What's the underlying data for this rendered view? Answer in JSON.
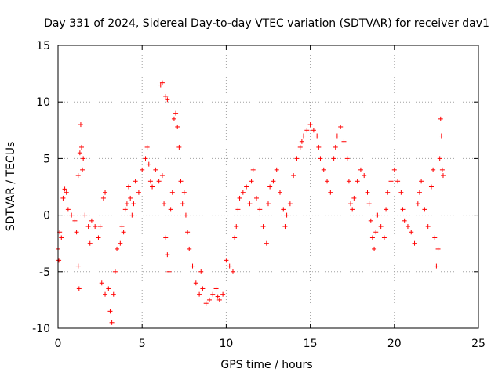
{
  "chart_data": {
    "type": "scatter",
    "title": "Day 331 of 2024, Sidereal Day-to-day VTEC variation (SDTVAR) for receiver dav1",
    "xlabel": "GPS time / hours",
    "ylabel": "SDTVAR / TECUs",
    "xlim": [
      0,
      25
    ],
    "ylim": [
      -10,
      15
    ],
    "x_ticks": [
      0,
      5,
      10,
      15,
      20,
      25
    ],
    "y_ticks": [
      -10,
      -5,
      0,
      5,
      10,
      15
    ],
    "grid": true,
    "marker": "+",
    "series": [
      {
        "name": "SDTVAR",
        "color": "#ff0000",
        "points": [
          [
            0.0,
            -3.0
          ],
          [
            0.05,
            -4.0
          ],
          [
            0.1,
            -1.5
          ],
          [
            0.2,
            -2.0
          ],
          [
            0.3,
            1.5
          ],
          [
            0.4,
            2.3
          ],
          [
            0.5,
            2.0
          ],
          [
            0.6,
            0.5
          ],
          [
            0.8,
            0.0
          ],
          [
            1.0,
            -0.5
          ],
          [
            1.1,
            -1.5
          ],
          [
            1.2,
            3.5
          ],
          [
            1.3,
            5.5
          ],
          [
            1.35,
            8.0
          ],
          [
            1.4,
            6.0
          ],
          [
            1.45,
            4.0
          ],
          [
            1.5,
            5.0
          ],
          [
            1.2,
            -4.5
          ],
          [
            1.25,
            -6.5
          ],
          [
            1.6,
            0.0
          ],
          [
            1.8,
            -1.0
          ],
          [
            1.9,
            -2.5
          ],
          [
            2.0,
            -0.5
          ],
          [
            2.2,
            -1.0
          ],
          [
            2.4,
            -2.0
          ],
          [
            2.5,
            -1.0
          ],
          [
            2.7,
            1.5
          ],
          [
            2.8,
            2.0
          ],
          [
            2.6,
            -6.0
          ],
          [
            2.8,
            -7.0
          ],
          [
            3.0,
            -6.5
          ],
          [
            3.1,
            -8.5
          ],
          [
            3.2,
            -9.5
          ],
          [
            3.3,
            -7.0
          ],
          [
            3.4,
            -5.0
          ],
          [
            3.5,
            -3.0
          ],
          [
            3.7,
            -2.5
          ],
          [
            3.8,
            -1.0
          ],
          [
            3.9,
            -1.5
          ],
          [
            4.0,
            0.5
          ],
          [
            4.1,
            1.0
          ],
          [
            4.2,
            2.5
          ],
          [
            4.3,
            1.5
          ],
          [
            4.4,
            0.0
          ],
          [
            4.5,
            1.0
          ],
          [
            4.6,
            3.0
          ],
          [
            4.8,
            2.0
          ],
          [
            5.0,
            4.0
          ],
          [
            5.2,
            5.0
          ],
          [
            5.3,
            6.0
          ],
          [
            5.4,
            4.5
          ],
          [
            5.5,
            3.0
          ],
          [
            5.6,
            2.5
          ],
          [
            5.8,
            4.0
          ],
          [
            6.0,
            3.0
          ],
          [
            6.1,
            11.5
          ],
          [
            6.2,
            11.7
          ],
          [
            6.4,
            10.5
          ],
          [
            6.5,
            10.2
          ],
          [
            6.2,
            3.5
          ],
          [
            6.3,
            1.0
          ],
          [
            6.4,
            -2.0
          ],
          [
            6.5,
            -3.5
          ],
          [
            6.6,
            -5.0
          ],
          [
            6.7,
            0.5
          ],
          [
            6.8,
            2.0
          ],
          [
            6.9,
            8.5
          ],
          [
            7.0,
            9.0
          ],
          [
            7.1,
            7.8
          ],
          [
            7.2,
            6.0
          ],
          [
            7.3,
            3.0
          ],
          [
            7.4,
            1.0
          ],
          [
            7.5,
            2.0
          ],
          [
            7.6,
            0.0
          ],
          [
            7.7,
            -1.5
          ],
          [
            7.8,
            -3.0
          ],
          [
            8.0,
            -4.5
          ],
          [
            8.2,
            -6.0
          ],
          [
            8.4,
            -7.0
          ],
          [
            8.5,
            -5.0
          ],
          [
            8.6,
            -6.5
          ],
          [
            8.8,
            -7.8
          ],
          [
            9.0,
            -7.5
          ],
          [
            9.2,
            -7.0
          ],
          [
            9.4,
            -6.5
          ],
          [
            9.5,
            -7.2
          ],
          [
            9.6,
            -7.5
          ],
          [
            9.8,
            -7.0
          ],
          [
            10.0,
            -4.0
          ],
          [
            10.2,
            -4.5
          ],
          [
            10.4,
            -5.0
          ],
          [
            10.5,
            -2.0
          ],
          [
            10.6,
            -1.0
          ],
          [
            10.7,
            0.5
          ],
          [
            10.8,
            1.5
          ],
          [
            11.0,
            2.0
          ],
          [
            11.2,
            2.5
          ],
          [
            11.4,
            1.0
          ],
          [
            11.5,
            3.0
          ],
          [
            11.6,
            4.0
          ],
          [
            11.8,
            1.5
          ],
          [
            12.0,
            0.5
          ],
          [
            12.2,
            -1.0
          ],
          [
            12.4,
            -2.5
          ],
          [
            12.5,
            1.0
          ],
          [
            12.6,
            2.5
          ],
          [
            12.8,
            3.0
          ],
          [
            13.0,
            4.0
          ],
          [
            13.2,
            2.0
          ],
          [
            13.4,
            0.5
          ],
          [
            13.5,
            -1.0
          ],
          [
            13.6,
            0.0
          ],
          [
            13.8,
            1.0
          ],
          [
            14.0,
            3.5
          ],
          [
            14.2,
            5.0
          ],
          [
            14.4,
            6.0
          ],
          [
            14.5,
            6.5
          ],
          [
            14.6,
            7.0
          ],
          [
            14.8,
            7.5
          ],
          [
            15.0,
            8.0
          ],
          [
            15.2,
            7.5
          ],
          [
            15.4,
            7.0
          ],
          [
            15.5,
            6.0
          ],
          [
            15.6,
            5.0
          ],
          [
            15.8,
            4.0
          ],
          [
            16.0,
            3.0
          ],
          [
            16.2,
            2.0
          ],
          [
            16.4,
            5.0
          ],
          [
            16.5,
            6.0
          ],
          [
            16.6,
            7.0
          ],
          [
            16.8,
            7.8
          ],
          [
            17.0,
            6.5
          ],
          [
            17.2,
            5.0
          ],
          [
            17.3,
            3.0
          ],
          [
            17.4,
            1.0
          ],
          [
            17.5,
            0.5
          ],
          [
            17.6,
            1.5
          ],
          [
            17.8,
            3.0
          ],
          [
            18.0,
            4.0
          ],
          [
            18.2,
            3.5
          ],
          [
            18.4,
            2.0
          ],
          [
            18.5,
            1.0
          ],
          [
            18.6,
            -0.5
          ],
          [
            18.7,
            -2.0
          ],
          [
            18.8,
            -3.0
          ],
          [
            18.9,
            -1.5
          ],
          [
            19.0,
            0.0
          ],
          [
            19.2,
            -1.0
          ],
          [
            19.4,
            -2.0
          ],
          [
            19.5,
            0.5
          ],
          [
            19.6,
            2.0
          ],
          [
            19.8,
            3.0
          ],
          [
            20.0,
            4.0
          ],
          [
            20.2,
            3.0
          ],
          [
            20.4,
            2.0
          ],
          [
            20.5,
            0.5
          ],
          [
            20.6,
            -0.5
          ],
          [
            20.8,
            -1.0
          ],
          [
            21.0,
            -1.5
          ],
          [
            21.2,
            -2.5
          ],
          [
            21.4,
            1.0
          ],
          [
            21.5,
            2.0
          ],
          [
            21.6,
            3.0
          ],
          [
            21.8,
            0.5
          ],
          [
            22.0,
            -1.0
          ],
          [
            22.2,
            2.5
          ],
          [
            22.3,
            4.0
          ],
          [
            22.4,
            -2.0
          ],
          [
            22.5,
            -4.5
          ],
          [
            22.6,
            -3.0
          ],
          [
            22.7,
            5.0
          ],
          [
            22.75,
            8.5
          ],
          [
            22.8,
            7.0
          ],
          [
            22.85,
            4.0
          ],
          [
            22.9,
            3.5
          ]
        ]
      }
    ]
  }
}
